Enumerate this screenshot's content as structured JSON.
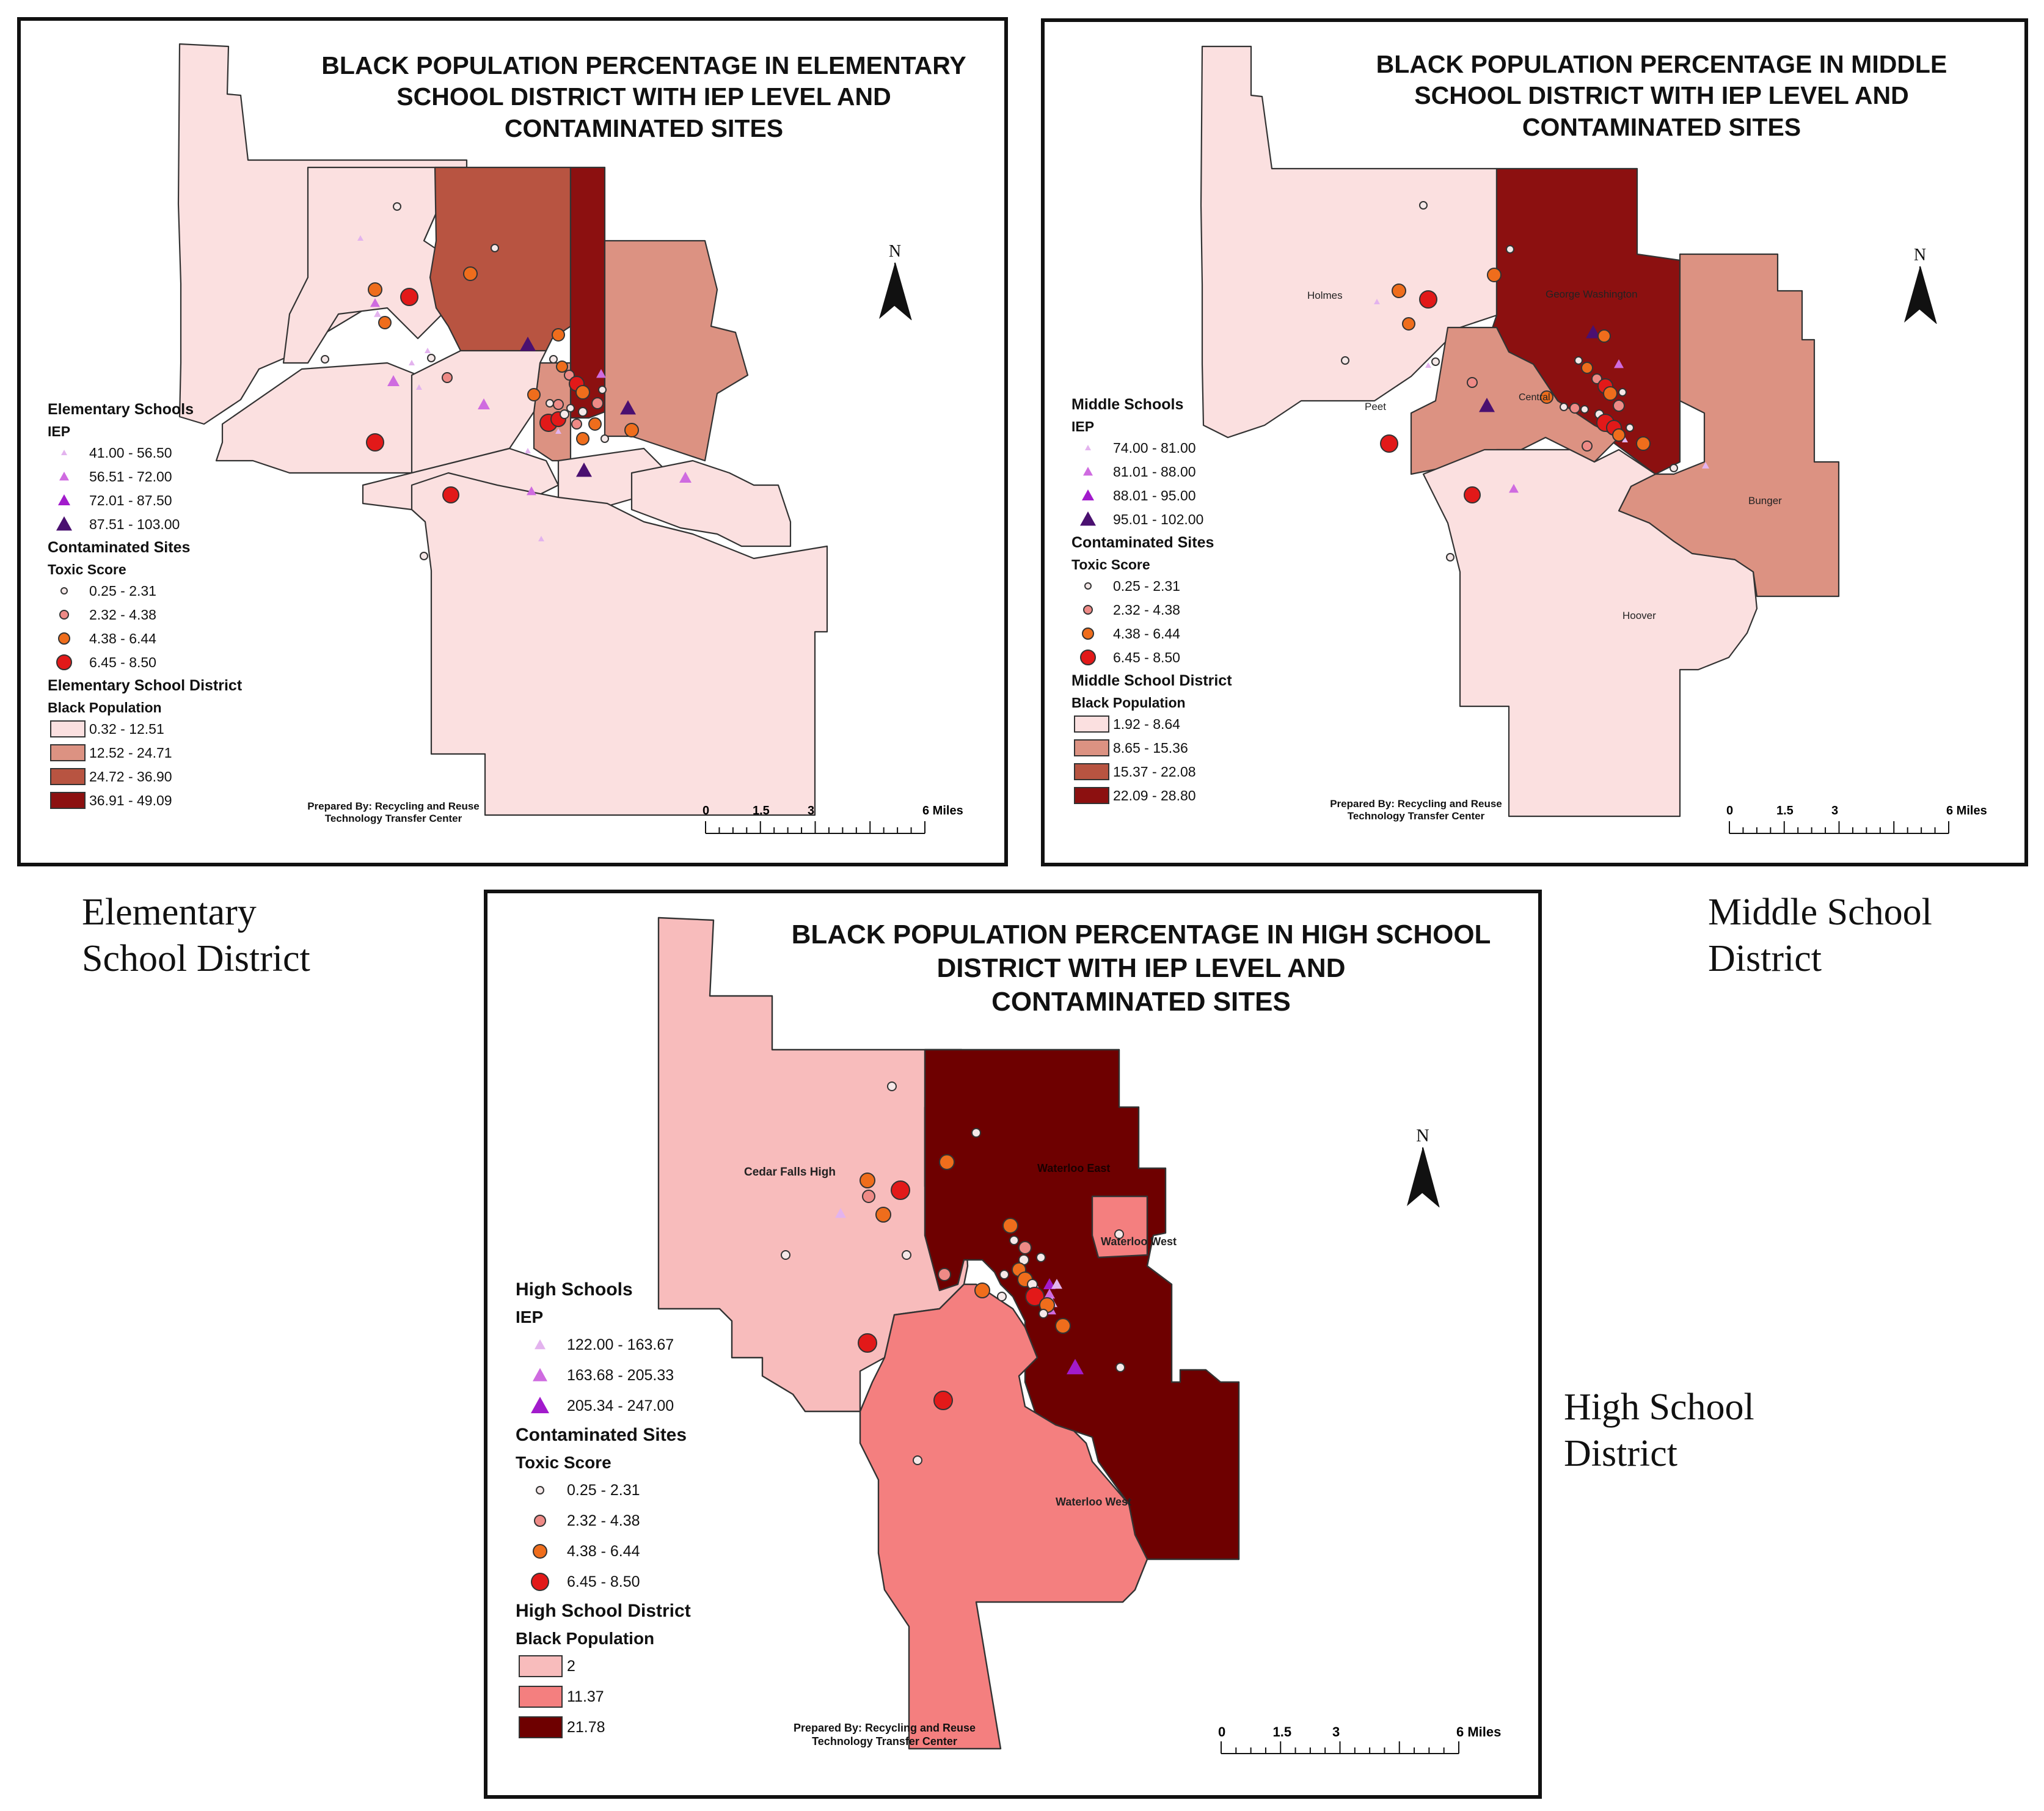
{
  "elementary": {
    "title": "BLACK POPULATION PERCENTAGE IN ELEMENTARY\nSCHOOL DISTRICT WITH IEP LEVEL AND\nCONTAMINATED SITES",
    "schools_heading": "Elementary Schools",
    "iep_heading": "IEP",
    "iep_classes": [
      "41.00 - 56.50",
      "56.51 - 72.00",
      "72.01 - 87.50",
      "87.51 - 103.00"
    ],
    "sites_heading": "Contaminated Sites",
    "toxic_heading": "Toxic Score",
    "toxic_classes": [
      "0.25 - 2.31",
      "2.32 - 4.38",
      "4.38 - 6.44",
      "6.45 - 8.50"
    ],
    "district_heading": "Elementary School District",
    "population_heading": "Black Population",
    "population_classes": [
      "0.32 - 12.51",
      "12.52 - 24.71",
      "24.72 - 36.90",
      "36.91 - 49.09"
    ],
    "prepared_by": "Prepared By: Recycling and Reuse\nTechnology Transfer Center",
    "north": "N",
    "scale_ticks": [
      "0",
      "1.5",
      "3",
      "6 Miles"
    ],
    "caption": "Elementary\nSchool District"
  },
  "middle": {
    "title": "BLACK POPULATION PERCENTAGE IN MIDDLE\nSCHOOL DISTRICT WITH IEP LEVEL AND\nCONTAMINATED SITES",
    "schools_heading": "Middle Schools",
    "iep_heading": "IEP",
    "iep_classes": [
      "74.00 - 81.00",
      "81.01 - 88.00",
      "88.01 - 95.00",
      "95.01 - 102.00"
    ],
    "sites_heading": "Contaminated Sites",
    "toxic_heading": "Toxic Score",
    "toxic_classes": [
      "0.25 - 2.31",
      "2.32 - 4.38",
      "4.38 - 6.44",
      "6.45 - 8.50"
    ],
    "district_heading": "Middle School District",
    "population_heading": "Black Population",
    "population_classes": [
      "1.92 - 8.64",
      "8.65 - 15.36",
      "15.37 - 22.08",
      "22.09 - 28.80"
    ],
    "district_names": [
      "Holmes",
      "George Washington",
      "Peet",
      "Central",
      "Bunger",
      "Hoover"
    ],
    "prepared_by": "Prepared By: Recycling and Reuse\nTechnology Transfer Center",
    "north": "N",
    "scale_ticks": [
      "0",
      "1.5",
      "3",
      "6 Miles"
    ],
    "caption": "Middle School\nDistrict"
  },
  "high": {
    "title": "BLACK POPULATION PERCENTAGE IN HIGH SCHOOL\nDISTRICT WITH IEP LEVEL AND\nCONTAMINATED SITES",
    "schools_heading": "High Schools",
    "iep_heading": "IEP",
    "iep_classes": [
      "122.00 - 163.67",
      "163.68 - 205.33",
      "205.34 - 247.00"
    ],
    "sites_heading": "Contaminated Sites",
    "toxic_heading": "Toxic Score",
    "toxic_classes": [
      "0.25 - 2.31",
      "2.32 - 4.38",
      "4.38 - 6.44",
      "6.45 - 8.50"
    ],
    "district_heading": "High School District",
    "population_heading": "Black Population",
    "population_classes": [
      "2",
      "11.37",
      "21.78"
    ],
    "district_names": [
      "Cedar Falls High",
      "Waterloo East",
      "Waterloo West",
      "Waterloo West"
    ],
    "prepared_by": "Prepared By: Recycling and Reuse\nTechnology Transfer Center",
    "north": "N",
    "scale_ticks": [
      "0",
      "1.5",
      "3",
      "6 Miles"
    ],
    "caption": "High School\nDistrict"
  },
  "colors": {
    "pop_class_1": "#fbe0e0",
    "pop_class_2": "#dc9282",
    "pop_class_3": "#b85441",
    "pop_class_4": "#8c1010",
    "high_pop_1": "#f8bcbc",
    "high_pop_2": "#f47f7f",
    "high_pop_3": "#6e0000",
    "iep_1": "#e3b3ee",
    "iep_2": "#cf6be0",
    "iep_3": "#a21bcc",
    "iep_4": "#4a1070",
    "toxic_1": "#f5e8e8",
    "toxic_2": "#ee8a86",
    "toxic_3": "#ef6d1c",
    "toxic_4": "#e21919"
  }
}
